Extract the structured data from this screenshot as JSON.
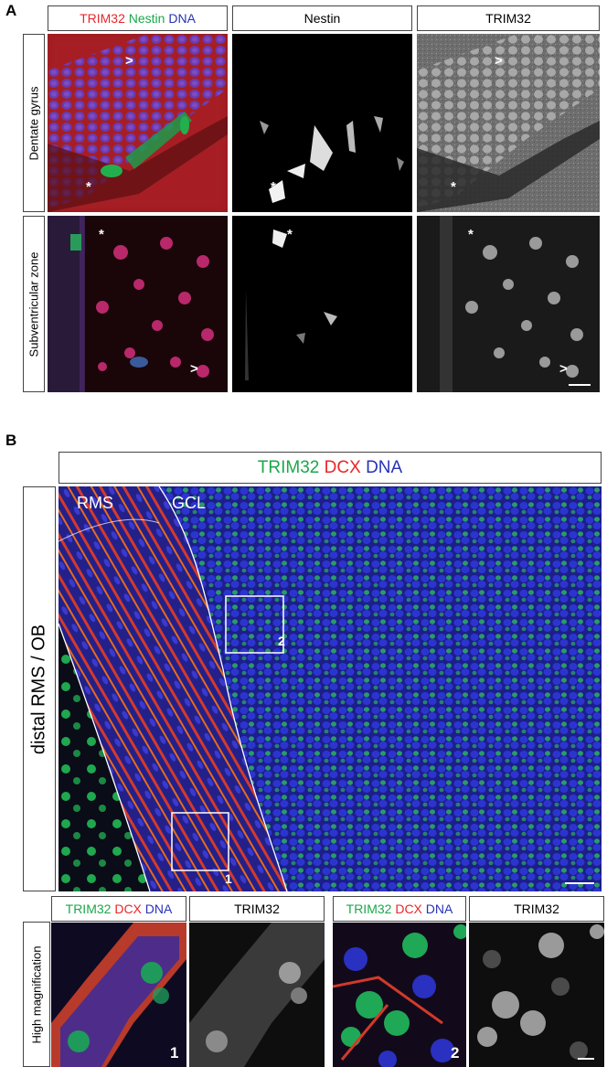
{
  "panelA": {
    "letter": "A",
    "channels": {
      "c1": "TRIM32",
      "c2": "Nestin",
      "c3": "DNA"
    },
    "col2": "Nestin",
    "col3": "TRIM32",
    "rows": [
      "Dentate gyrus",
      "Subventricular zone"
    ]
  },
  "panelB": {
    "letter": "B",
    "header": {
      "c1": "TRIM32",
      "c2": "DCX",
      "c3": "DNA"
    },
    "row_label": "distal RMS / OB",
    "region1": "RMS",
    "region2": "GCL",
    "box1": "1",
    "box2": "2"
  },
  "panelB_hm": {
    "row_label": "High magnification",
    "merge": {
      "c1": "TRIM32",
      "c2": "DCX",
      "c3": "DNA"
    },
    "single": "TRIM32",
    "n1": "1",
    "n2": "2"
  },
  "colors": {
    "red": "#e8262a",
    "green": "#1aa84a",
    "blue": "#2832b8"
  }
}
